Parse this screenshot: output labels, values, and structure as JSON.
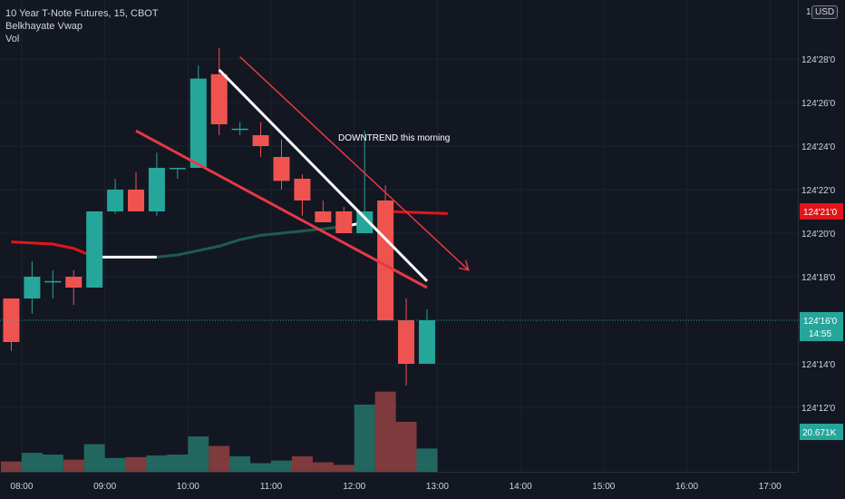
{
  "legend": {
    "title": "10 Year T-Note Futures, 15, CBOT",
    "indicator": "Belkhayate Vwap",
    "volume": "Vol"
  },
  "currency": "USD",
  "axis_top_digit": "0",
  "annotation": "DOWNTREND this morning",
  "price_label": "124'16'0",
  "countdown": "14:55",
  "vwap_label": "124'21'0",
  "volume_label": "20.671K",
  "colors": {
    "background": "#131722",
    "up": "#26a69a",
    "down": "#ef5350",
    "up_vol": "#22675f",
    "down_vol": "#7f3a3d",
    "grid": "#1e222d",
    "text": "#d1d4dc",
    "vwap_red": "#e2151b",
    "vwap_green": "#1e5c4e",
    "trend_white": "#ffffff",
    "trend_red": "#e53946"
  },
  "chart_data": {
    "type": "candlestick",
    "title": "10 Year T-Note Futures, 15, CBOT",
    "y_unit": "32nds above 124",
    "ylim": [
      11.0,
      30.0
    ],
    "yticks": [
      {
        "v": 28,
        "label": "124'28'0"
      },
      {
        "v": 26,
        "label": "124'26'0"
      },
      {
        "v": 24,
        "label": "124'24'0"
      },
      {
        "v": 22,
        "label": "124'22'0"
      },
      {
        "v": 20,
        "label": "124'20'0"
      },
      {
        "v": 18,
        "label": "124'18'0"
      },
      {
        "v": 14,
        "label": "124'14'0"
      },
      {
        "v": 12,
        "label": "124'12'0"
      }
    ],
    "xlim": [
      "07:45",
      "17:45"
    ],
    "xticks": [
      "08:00",
      "09:00",
      "10:00",
      "11:00",
      "12:00",
      "13:00",
      "14:00",
      "15:00",
      "16:00",
      "17:00"
    ],
    "candles": [
      {
        "t": "07:45",
        "o": 17.0,
        "h": 17.0,
        "l": 14.6,
        "c": 15.0
      },
      {
        "t": "08:00",
        "o": 17.0,
        "h": 18.7,
        "l": 16.3,
        "c": 18.0
      },
      {
        "t": "08:15",
        "o": 17.8,
        "h": 18.3,
        "l": 17.0,
        "c": 17.8
      },
      {
        "t": "08:30",
        "o": 18.0,
        "h": 18.3,
        "l": 16.7,
        "c": 17.5
      },
      {
        "t": "08:45",
        "o": 17.5,
        "h": 21.0,
        "l": 17.5,
        "c": 21.0
      },
      {
        "t": "09:00",
        "o": 21.0,
        "h": 22.5,
        "l": 20.9,
        "c": 22.0
      },
      {
        "t": "09:15",
        "o": 22.0,
        "h": 22.8,
        "l": 21.0,
        "c": 21.0
      },
      {
        "t": "09:30",
        "o": 21.0,
        "h": 23.7,
        "l": 20.8,
        "c": 23.0
      },
      {
        "t": "09:45",
        "o": 23.0,
        "h": 23.0,
        "l": 22.5,
        "c": 23.0
      },
      {
        "t": "10:00",
        "o": 23.0,
        "h": 27.7,
        "l": 23.0,
        "c": 27.1
      },
      {
        "t": "10:15",
        "o": 27.3,
        "h": 28.5,
        "l": 24.5,
        "c": 25.0
      },
      {
        "t": "10:30",
        "o": 24.8,
        "h": 25.1,
        "l": 24.5,
        "c": 24.8
      },
      {
        "t": "10:45",
        "o": 24.5,
        "h": 25.1,
        "l": 23.5,
        "c": 24.0
      },
      {
        "t": "11:00",
        "o": 23.5,
        "h": 24.3,
        "l": 22.0,
        "c": 22.4
      },
      {
        "t": "11:15",
        "o": 22.5,
        "h": 22.7,
        "l": 20.8,
        "c": 21.5
      },
      {
        "t": "11:30",
        "o": 21.0,
        "h": 21.5,
        "l": 20.5,
        "c": 20.5
      },
      {
        "t": "11:45",
        "o": 21.0,
        "h": 21.2,
        "l": 20.0,
        "c": 20.0
      },
      {
        "t": "12:00",
        "o": 20.0,
        "h": 24.7,
        "l": 20.0,
        "c": 21.0
      },
      {
        "t": "12:15",
        "o": 21.5,
        "h": 22.2,
        "l": 16.0,
        "c": 16.0
      },
      {
        "t": "12:30",
        "o": 16.0,
        "h": 17.0,
        "l": 13.0,
        "c": 14.0
      },
      {
        "t": "12:45",
        "o": 14.0,
        "h": 16.5,
        "l": 14.0,
        "c": 16.0
      }
    ],
    "volume": {
      "max": 140,
      "values": [
        {
          "t": "07:45",
          "v": 12,
          "up": false
        },
        {
          "t": "08:00",
          "v": 22,
          "up": true
        },
        {
          "t": "08:15",
          "v": 20,
          "up": true
        },
        {
          "t": "08:30",
          "v": 14,
          "up": false
        },
        {
          "t": "08:45",
          "v": 32,
          "up": true
        },
        {
          "t": "09:00",
          "v": 16,
          "up": true
        },
        {
          "t": "09:15",
          "v": 17,
          "up": false
        },
        {
          "t": "09:30",
          "v": 19,
          "up": true
        },
        {
          "t": "09:45",
          "v": 20,
          "up": true
        },
        {
          "t": "10:00",
          "v": 41,
          "up": true
        },
        {
          "t": "10:15",
          "v": 30,
          "up": false
        },
        {
          "t": "10:30",
          "v": 18,
          "up": true
        },
        {
          "t": "10:45",
          "v": 10,
          "up": true
        },
        {
          "t": "11:00",
          "v": 13,
          "up": true
        },
        {
          "t": "11:15",
          "v": 18,
          "up": false
        },
        {
          "t": "11:30",
          "v": 11,
          "up": false
        },
        {
          "t": "11:45",
          "v": 8,
          "up": false
        },
        {
          "t": "12:00",
          "v": 78,
          "up": true
        },
        {
          "t": "12:15",
          "v": 93,
          "up": false
        },
        {
          "t": "12:30",
          "v": 58,
          "up": false
        },
        {
          "t": "12:45",
          "v": 27,
          "up": true
        }
      ]
    },
    "vwap": {
      "segments": [
        {
          "color": "red",
          "points": [
            [
              "07:45",
              19.6
            ],
            [
              "08:15",
              19.5
            ],
            [
              "08:30",
              19.3
            ],
            [
              "08:45",
              18.9
            ]
          ]
        },
        {
          "color": "white",
          "points": [
            [
              "08:45",
              18.9
            ],
            [
              "09:15",
              18.9
            ],
            [
              "09:30",
              18.9
            ]
          ]
        },
        {
          "color": "green",
          "points": [
            [
              "09:30",
              18.9
            ],
            [
              "09:45",
              19.0
            ],
            [
              "10:00",
              19.2
            ],
            [
              "10:15",
              19.4
            ],
            [
              "10:30",
              19.7
            ],
            [
              "10:45",
              19.9
            ],
            [
              "11:00",
              20.0
            ],
            [
              "11:15",
              20.1
            ],
            [
              "11:30",
              20.2
            ],
            [
              "11:45",
              20.3
            ]
          ]
        },
        {
          "color": "white",
          "points": [
            [
              "11:45",
              20.3
            ],
            [
              "12:00",
              20.5
            ]
          ]
        },
        {
          "color": "red",
          "points": [
            [
              "12:15",
              21.0
            ],
            [
              "13:00",
              20.9
            ]
          ]
        }
      ]
    },
    "trendlines": [
      {
        "color": "white",
        "from": [
          "10:15",
          27.5
        ],
        "to": [
          "12:45",
          17.8
        ]
      },
      {
        "color": "red",
        "from": [
          "09:15",
          24.7
        ],
        "to": [
          "12:45",
          17.5
        ]
      },
      {
        "color": "red",
        "from": [
          "10:30",
          28.1
        ],
        "to": [
          "13:15",
          18.3
        ],
        "arrow": true
      }
    ],
    "last_price": 16.0,
    "vwap_last": 21.0,
    "grid": true
  }
}
